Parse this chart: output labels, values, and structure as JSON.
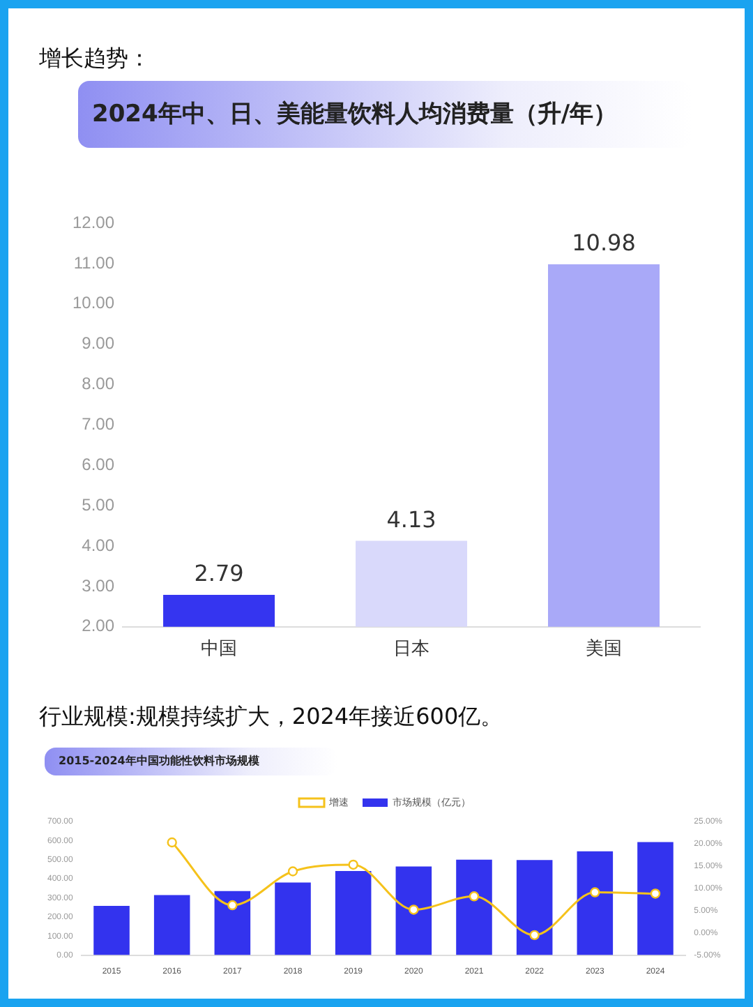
{
  "chart_data": [
    {
      "type": "bar",
      "title": "2024年中、日、美能量饮料人均消费量（升/年）",
      "annotations": [
        "增长趋势："
      ],
      "categories": [
        "中国",
        "日本",
        "美国"
      ],
      "values": [
        2.79,
        4.13,
        10.98
      ],
      "colors": [
        "#3535f0",
        "#d9d9fb",
        "#a9a9f8"
      ],
      "ylim": [
        2,
        12
      ],
      "yticks": [
        {
          "value": 2,
          "label": "2.00"
        },
        {
          "value": 3,
          "label": "3.00"
        },
        {
          "value": 4,
          "label": "4.00"
        },
        {
          "value": 5,
          "label": "5.00"
        },
        {
          "value": 6,
          "label": "6.00"
        },
        {
          "value": 7,
          "label": "7.00"
        },
        {
          "value": 8,
          "label": "8.00"
        },
        {
          "value": 9,
          "label": "9.00"
        },
        {
          "value": 10,
          "label": "10.00"
        },
        {
          "value": 11,
          "label": "11.00"
        },
        {
          "value": 12,
          "label": "12.00"
        }
      ],
      "data_labels": true,
      "grid": false,
      "legend": false
    },
    {
      "type": "bar",
      "title": "2015-2024年中国功能性饮料市场规模",
      "annotations": [
        "行业规模:规模持续扩大，2024年接近600亿。"
      ],
      "categories": [
        "2015",
        "2016",
        "2017",
        "2018",
        "2019",
        "2020",
        "2021",
        "2022",
        "2023",
        "2024"
      ],
      "series": [
        {
          "name": "市场规模（亿元）",
          "type": "bar",
          "color": "#3333ee",
          "values": [
            258,
            315,
            336,
            380,
            441,
            464,
            500,
            498,
            544,
            592
          ]
        },
        {
          "name": "增速",
          "type": "line",
          "axis": "y2",
          "color": "#f5c21b",
          "values": [
            null,
            20.3,
            6.2,
            13.8,
            15.3,
            5.2,
            8.2,
            -0.5,
            9.1,
            8.8
          ]
        }
      ],
      "ylim": [
        0,
        700
      ],
      "yticks": [
        {
          "value": 0,
          "label": "0.00"
        },
        {
          "value": 100,
          "label": "100.00"
        },
        {
          "value": 200,
          "label": "200.00"
        },
        {
          "value": 300,
          "label": "300.00"
        },
        {
          "value": 400,
          "label": "400.00"
        },
        {
          "value": 500,
          "label": "500.00"
        },
        {
          "value": 600,
          "label": "600.00"
        },
        {
          "value": 700,
          "label": "700.00"
        }
      ],
      "y2lim": [
        -5,
        25
      ],
      "y2ticks": [
        {
          "value": -5,
          "label": "-5.00%"
        },
        {
          "value": 0,
          "label": "0.00%"
        },
        {
          "value": 5,
          "label": "5.00%"
        },
        {
          "value": 10,
          "label": "10.00%"
        },
        {
          "value": 15,
          "label": "15.00%"
        },
        {
          "value": 20,
          "label": "20.00%"
        },
        {
          "value": 25,
          "label": "25.00%"
        }
      ],
      "marker": "circle",
      "grid": false,
      "legend": "top"
    }
  ]
}
